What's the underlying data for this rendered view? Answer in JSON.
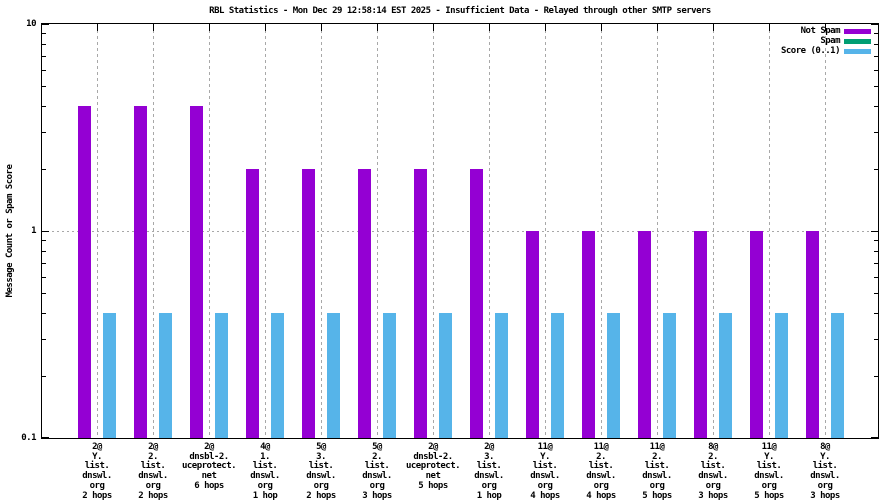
{
  "chart_data": {
    "type": "bar",
    "title": "RBL Statistics - Mon Dec 29 12:58:14 EST 2025 - Insufficient Data - Relayed through other SMTP servers",
    "ylabel": "Message Count or Spam Score",
    "xlabel": "",
    "y_scale": "log",
    "ylim": [
      0.1,
      10
    ],
    "y_major_ticks": [
      "10",
      "1",
      "0.1"
    ],
    "grid": {
      "vertical_dashed_per_category": true,
      "horizontal_dotted_at": 1
    },
    "legend_position": "top-right-inside",
    "categories": [
      [
        "2@",
        "Y.",
        "list.",
        "dnswl.",
        "org",
        "2 hops"
      ],
      [
        "2@",
        "2.",
        "list.",
        "dnswl.",
        "org",
        "2 hops"
      ],
      [
        "2@",
        "dnsbl-2.",
        "uceprotect.",
        "net",
        "6 hops"
      ],
      [
        "4@",
        "1.",
        "list.",
        "dnswl.",
        "org",
        "1 hop"
      ],
      [
        "5@",
        "3.",
        "list.",
        "dnswl.",
        "org",
        "2 hops"
      ],
      [
        "5@",
        "2.",
        "list.",
        "dnswl.",
        "org",
        "3 hops"
      ],
      [
        "2@",
        "dnsbl-2.",
        "uceprotect.",
        "net",
        "5 hops"
      ],
      [
        "2@",
        "3.",
        "list.",
        "dnswl.",
        "org",
        "1 hop"
      ],
      [
        "11@",
        "Y.",
        "list.",
        "dnswl.",
        "org",
        "4 hops"
      ],
      [
        "11@",
        "2.",
        "list.",
        "dnswl.",
        "org",
        "4 hops"
      ],
      [
        "11@",
        "2.",
        "list.",
        "dnswl.",
        "org",
        "5 hops"
      ],
      [
        "8@",
        "2.",
        "list.",
        "dnswl.",
        "org",
        "3 hops"
      ],
      [
        "11@",
        "Y.",
        "list.",
        "dnswl.",
        "org",
        "5 hops"
      ],
      [
        "8@",
        "Y.",
        "list.",
        "dnswl.",
        "org",
        "3 hops"
      ]
    ],
    "series": [
      {
        "name": "Not Spam",
        "color": "#9400D3",
        "values": [
          4,
          4,
          4,
          2,
          2,
          2,
          2,
          2,
          1,
          1,
          1,
          1,
          1,
          1
        ]
      },
      {
        "name": "Spam",
        "color": "#009E73",
        "values": [
          0,
          0,
          0,
          0,
          0,
          0,
          0,
          0,
          0,
          0,
          0,
          0,
          0,
          0
        ]
      },
      {
        "name": "Score (0..1)",
        "color": "#56B4E9",
        "values": [
          0.4,
          0.4,
          0.4,
          0.4,
          0.4,
          0.4,
          0.4,
          0.4,
          0.4,
          0.4,
          0.4,
          0.4,
          0.4,
          0.4
        ]
      }
    ],
    "colors": {
      "background": "#ffffff",
      "axis": "#000000",
      "grid": "#a8a8a8",
      "text": "#000000"
    }
  }
}
